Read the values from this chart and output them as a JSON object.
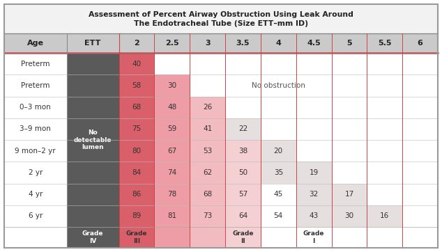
{
  "title_line1": "Assessment of Percent Airway Obstruction Using Leak Around",
  "title_line2": "The Endotracheal Tube (Size ETT–mm ID)",
  "col_headers": [
    "Age",
    "ETT",
    "2",
    "2.5",
    "3",
    "3.5",
    "4",
    "4.5",
    "5",
    "5.5",
    "6"
  ],
  "row_labels": [
    "Preterm",
    "Preterm",
    "0–3 mon",
    "3–9 mon",
    "9 mon–2 yr",
    "2 yr",
    "4 yr",
    "6 yr"
  ],
  "ett_label": "No\ndetectable\nlumen",
  "no_obstruction_text": "No obstruction",
  "data": [
    [
      "40",
      "",
      "",
      "",
      "",
      "",
      "",
      "",
      ""
    ],
    [
      "58",
      "30",
      "",
      "",
      "",
      "",
      "",
      "",
      ""
    ],
    [
      "68",
      "48",
      "26",
      "",
      "",
      "",
      "",
      "",
      ""
    ],
    [
      "75",
      "59",
      "41",
      "22",
      "",
      "",
      "",
      "",
      ""
    ],
    [
      "80",
      "67",
      "53",
      "38",
      "20",
      "",
      "",
      "",
      ""
    ],
    [
      "84",
      "74",
      "62",
      "50",
      "35",
      "19",
      "",
      "",
      ""
    ],
    [
      "86",
      "78",
      "68",
      "57",
      "45",
      "32",
      "17",
      "",
      ""
    ],
    [
      "89",
      "81",
      "73",
      "64",
      "54",
      "43",
      "30",
      "16",
      ""
    ]
  ],
  "title_bg": "#F2F2F2",
  "header_bg": "#CACACA",
  "age_col_bg": "#FFFFFF",
  "ett_col_bg": "#5A5A5A",
  "data_col_colors": [
    "#D9606A",
    "#EE9DA6",
    "#F2BBBF",
    "#F5D0D3",
    "#FFFFFF",
    "#FFFFFF",
    "#FFFFFF",
    "#FFFFFF",
    "#FFFFFF"
  ],
  "grade_col_colors": [
    "#D9606A",
    "#EE9DA6",
    "#F2BBBF",
    "#F5D0D3",
    "#FFFFFF",
    "#FFFFFF",
    "#FFFFFF",
    "#FFFFFF",
    "#FFFFFF"
  ],
  "empty_cell_color_cols04": "#E8E2E2",
  "grade_bottom_bg": "#E0DADA",
  "border_red": "#CC4444",
  "border_gray": "#888888",
  "outer_border": "#999999",
  "text_dark": "#333333",
  "text_white": "#FFFFFF",
  "grade_entries": [
    {
      "col": 1,
      "text": "Grade\nIV",
      "white_text": true
    },
    {
      "col": 2,
      "text": "Grade\nIII",
      "white_text": false
    },
    {
      "col": 5,
      "text": "Grade\nII",
      "white_text": false
    },
    {
      "col": 7,
      "text": "Grade\nI",
      "white_text": false
    }
  ],
  "col_widths_raw": [
    1.55,
    1.3,
    0.88,
    0.88,
    0.88,
    0.88,
    0.88,
    0.88,
    0.88,
    0.88,
    0.88
  ]
}
